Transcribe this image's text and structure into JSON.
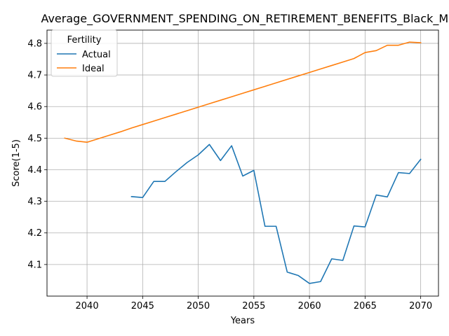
{
  "chart_data": {
    "type": "line",
    "title": "Average_GOVERNMENT_SPENDING_ON_RETIREMENT_BENEFITS_Black_Male_(",
    "xlabel": "Years",
    "ylabel": "Score(1-5)",
    "xlim": [
      2036.4,
      2071.6
    ],
    "ylim": [
      4.0,
      4.842
    ],
    "xticks": [
      2040,
      2045,
      2050,
      2055,
      2060,
      2065,
      2070
    ],
    "yticks": [
      4.1,
      4.2,
      4.3,
      4.4,
      4.5,
      4.6,
      4.7,
      4.8
    ],
    "grid": true,
    "legend": {
      "title": "Fertility",
      "placement": "top-left"
    },
    "series": [
      {
        "name": "Actual",
        "color": "#1f77b4",
        "x": [
          2044,
          2045,
          2046,
          2047,
          2048,
          2049,
          2050,
          2051,
          2052,
          2053,
          2054,
          2055,
          2056,
          2057,
          2058,
          2059,
          2060,
          2061,
          2062,
          2063,
          2064,
          2065,
          2066,
          2067,
          2068,
          2069,
          2070
        ],
        "y": [
          4.315,
          4.312,
          4.363,
          4.363,
          4.394,
          4.423,
          4.447,
          4.48,
          4.429,
          4.476,
          4.38,
          4.398,
          4.221,
          4.221,
          4.076,
          4.065,
          4.04,
          4.046,
          4.118,
          4.113,
          4.222,
          4.219,
          4.32,
          4.314,
          4.391,
          4.388,
          4.433
        ]
      },
      {
        "name": "Ideal",
        "color": "#ff7f0e",
        "x": [
          2038,
          2039,
          2040,
          2041,
          2042,
          2043,
          2044,
          2045,
          2046,
          2047,
          2048,
          2049,
          2050,
          2051,
          2052,
          2053,
          2054,
          2055,
          2056,
          2057,
          2058,
          2059,
          2060,
          2061,
          2062,
          2063,
          2064,
          2065,
          2066,
          2067,
          2068,
          2069,
          2070
        ],
        "y": [
          4.5,
          4.491,
          4.487,
          4.498,
          4.509,
          4.52,
          4.532,
          4.543,
          4.554,
          4.565,
          4.576,
          4.587,
          4.598,
          4.609,
          4.62,
          4.631,
          4.642,
          4.653,
          4.664,
          4.675,
          4.686,
          4.697,
          4.708,
          4.719,
          4.73,
          4.741,
          4.752,
          4.771,
          4.777,
          4.794,
          4.794,
          4.804,
          4.802
        ]
      }
    ]
  }
}
